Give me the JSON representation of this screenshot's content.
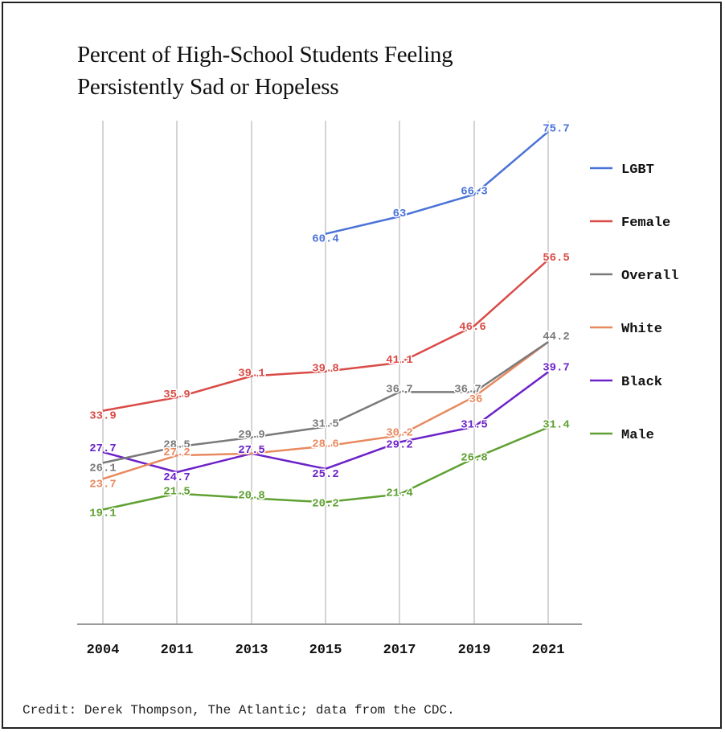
{
  "chart_data": {
    "type": "line",
    "title": "Percent of High-School Students Feeling\nPersistently Sad or Hopeless",
    "x": [
      "2004",
      "2011",
      "2013",
      "2015",
      "2017",
      "2019",
      "2021"
    ],
    "ylim": [
      0,
      80
    ],
    "grid": "vertical",
    "legend_position": "right",
    "series": [
      {
        "name": "LGBT",
        "color": "#4a72d8",
        "values": [
          null,
          null,
          null,
          60.4,
          63,
          66.3,
          75.7
        ],
        "labels": [
          "",
          "",
          "",
          "60.4",
          "63",
          "66.3",
          "75.7"
        ]
      },
      {
        "name": "Female",
        "color": "#d94b46",
        "values": [
          33.9,
          35.9,
          39.1,
          39.8,
          41.1,
          46.6,
          56.5
        ],
        "labels": [
          "33.9",
          "35.9",
          "39.1",
          "39.8",
          "41.1",
          "46.6",
          "56.5"
        ]
      },
      {
        "name": "Overall",
        "color": "#7a7a7a",
        "values": [
          26.1,
          28.5,
          29.9,
          31.5,
          36.7,
          36.7,
          44.2
        ],
        "labels": [
          "26.1",
          "28.5",
          "29.9",
          "31.5",
          "36.7",
          "36.7",
          "44.2"
        ]
      },
      {
        "name": "White",
        "color": "#e8895e",
        "values": [
          23.7,
          27.2,
          27.5,
          28.6,
          30.2,
          36,
          44.2
        ],
        "labels": [
          "23.7",
          "27.2",
          "",
          "28.6",
          "30.2",
          "36",
          ""
        ]
      },
      {
        "name": "Black",
        "color": "#6c22c9",
        "values": [
          27.7,
          24.7,
          27.5,
          25.2,
          29.2,
          31.5,
          39.7
        ],
        "labels": [
          "27.7",
          "24.7",
          "27.5",
          "25.2",
          "29.2",
          "31.5",
          "39.7"
        ]
      },
      {
        "name": "Male",
        "color": "#5fa032",
        "values": [
          19.1,
          21.5,
          20.8,
          20.2,
          21.4,
          26.8,
          31.4
        ],
        "labels": [
          "19.1",
          "21.5",
          "20.8",
          "20.2",
          "21.4",
          "26.8",
          "31.4"
        ]
      }
    ]
  },
  "credit": "Credit: Derek Thompson, The Atlantic; data from the CDC."
}
